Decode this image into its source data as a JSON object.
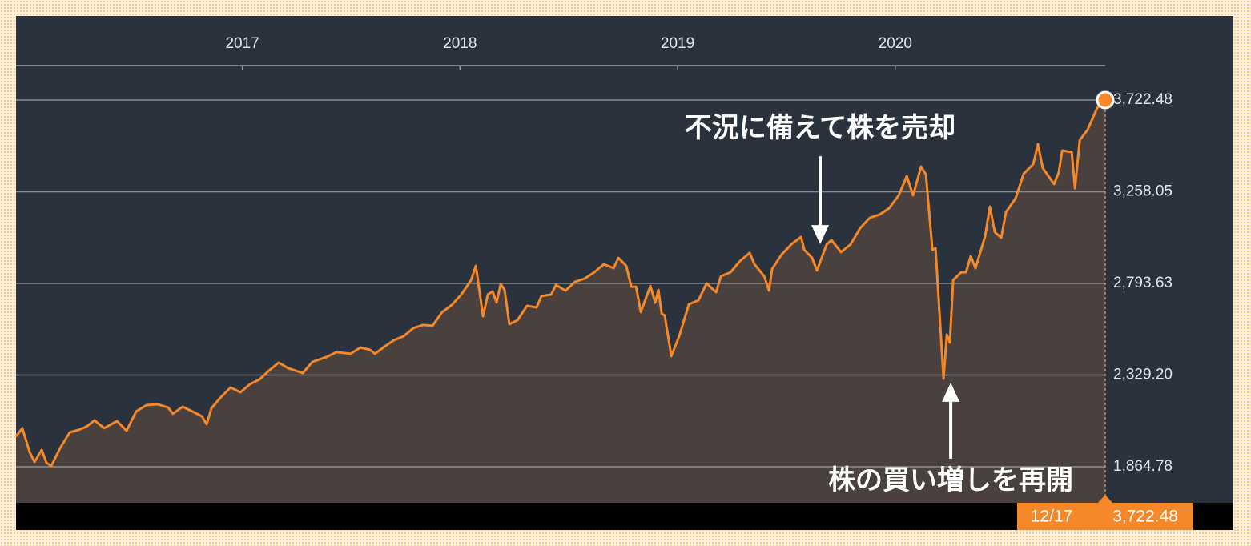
{
  "chart_data": {
    "type": "line",
    "x": [
      2015.96,
      2015.989,
      2016.023,
      2016.045,
      2016.078,
      2016.1,
      2016.122,
      2016.162,
      2016.207,
      2016.247,
      2016.284,
      2016.321,
      2016.365,
      2016.424,
      2016.468,
      2016.512,
      2016.56,
      2016.611,
      2016.659,
      2016.681,
      2016.726,
      2016.77,
      2016.814,
      2016.836,
      2016.858,
      2016.902,
      2016.946,
      2016.991,
      2017.035,
      2017.079,
      2017.123,
      2017.167,
      2017.211,
      2017.278,
      2017.322,
      2017.388,
      2017.432,
      2017.498,
      2017.543,
      2017.587,
      2017.609,
      2017.653,
      2017.697,
      2017.741,
      2017.786,
      2017.83,
      2017.874,
      2017.918,
      2017.962,
      2018.006,
      2018.051,
      2018.073,
      2018.106,
      2018.128,
      2018.15,
      2018.168,
      2018.187,
      2018.205,
      2018.227,
      2018.264,
      2018.308,
      2018.352,
      2018.374,
      2018.419,
      2018.441,
      2018.485,
      2018.529,
      2018.573,
      2018.617,
      2018.661,
      2018.706,
      2018.728,
      2018.764,
      2018.787,
      2018.809,
      2018.831,
      2018.875,
      2018.897,
      2018.912,
      2018.927,
      2018.941,
      2018.971,
      2019.007,
      2019.052,
      2019.096,
      2019.133,
      2019.177,
      2019.199,
      2019.243,
      2019.287,
      2019.331,
      2019.353,
      2019.398,
      2019.42,
      2019.434,
      2019.478,
      2019.523,
      2019.567,
      2019.582,
      2019.618,
      2019.64,
      2019.685,
      2019.707,
      2019.751,
      2019.795,
      2019.839,
      2019.883,
      2019.928,
      2019.972,
      2020.016,
      2020.053,
      2020.082,
      2020.119,
      2020.141,
      2020.171,
      2020.185,
      2020.2,
      2020.222,
      2020.237,
      2020.251,
      2020.266,
      2020.303,
      2020.325,
      2020.347,
      2020.369,
      2020.413,
      2020.435,
      2020.458,
      2020.487,
      2020.509,
      2020.553,
      2020.59,
      2020.634,
      2020.656,
      2020.678,
      2020.73,
      2020.752,
      2020.767,
      2020.811,
      2020.826,
      2020.848,
      2020.884,
      2020.928,
      2020.965
    ],
    "values": [
      2019,
      2060,
      1938,
      1889,
      1950,
      1885,
      1869,
      1958,
      2039,
      2051,
      2068,
      2100,
      2060,
      2096,
      2047,
      2145,
      2177,
      2181,
      2165,
      2133,
      2169,
      2145,
      2120,
      2080,
      2161,
      2218,
      2266,
      2242,
      2283,
      2307,
      2352,
      2392,
      2364,
      2339,
      2396,
      2421,
      2445,
      2437,
      2469,
      2457,
      2437,
      2473,
      2506,
      2526,
      2567,
      2583,
      2579,
      2648,
      2684,
      2737,
      2810,
      2883,
      2627,
      2737,
      2753,
      2696,
      2790,
      2761,
      2587,
      2607,
      2680,
      2672,
      2729,
      2737,
      2786,
      2757,
      2802,
      2818,
      2850,
      2891,
      2871,
      2923,
      2883,
      2777,
      2777,
      2648,
      2781,
      2696,
      2761,
      2640,
      2631,
      2425,
      2526,
      2688,
      2708,
      2794,
      2749,
      2830,
      2850,
      2907,
      2948,
      2891,
      2830,
      2757,
      2867,
      2940,
      2992,
      3029,
      2964,
      2923,
      2859,
      2992,
      3013,
      2952,
      2992,
      3074,
      3126,
      3142,
      3175,
      3240,
      3337,
      3240,
      3386,
      3345,
      2964,
      2972,
      2708,
      2311,
      2534,
      2493,
      2810,
      2850,
      2850,
      2932,
      2871,
      3033,
      3183,
      3053,
      3025,
      3155,
      3224,
      3349,
      3398,
      3499,
      3378,
      3297,
      3357,
      3467,
      3459,
      3276,
      3520,
      3572,
      3682,
      3722.48
    ],
    "value_labels": [
      null,
      null,
      null,
      null,
      null,
      null,
      null,
      null,
      null,
      null,
      null,
      null,
      null,
      null,
      null,
      null,
      null,
      null,
      null,
      null,
      null,
      null,
      null,
      null,
      null,
      null,
      null,
      null,
      null,
      null,
      null,
      null,
      null,
      null,
      null,
      null,
      null,
      null,
      null,
      null,
      null,
      null,
      null,
      null,
      null,
      null,
      null,
      null,
      null,
      null,
      null,
      null,
      null,
      null,
      null,
      null,
      null,
      null,
      null,
      null,
      null,
      null,
      null,
      null,
      null,
      null,
      null,
      null,
      null,
      null,
      null,
      null,
      null,
      null,
      null,
      null,
      null,
      null,
      null,
      null,
      null,
      null,
      null,
      null,
      null,
      null,
      null,
      null,
      null,
      null,
      null,
      null,
      null,
      null,
      null,
      null,
      null,
      null,
      null,
      null,
      null,
      null,
      null,
      null,
      null,
      null,
      null,
      null,
      null,
      null,
      null,
      null,
      null,
      null,
      null,
      null,
      null,
      null,
      null,
      null,
      null,
      null,
      null,
      null,
      null,
      null,
      null,
      null,
      null,
      null,
      null,
      null,
      null,
      null,
      null,
      null,
      null,
      null,
      null,
      null,
      null,
      null,
      null,
      "3,722.48"
    ],
    "last_date_label": "12/17",
    "color": "#f5892a",
    "xlim": [
      2015.96,
      2020.965
    ],
    "xticks": [
      2017,
      2018,
      2019,
      2020
    ],
    "ylim": [
      1682,
      3897
    ],
    "yticks": [
      {
        "value": 1864.78,
        "label": "1,864.78"
      },
      {
        "value": 2329.2,
        "label": "2,329.20"
      },
      {
        "value": 2793.63,
        "label": "2,793.63"
      },
      {
        "value": 3258.05,
        "label": "3,258.05"
      },
      {
        "value": 3722.48,
        "label": "3,722.48"
      }
    ],
    "grid": true,
    "annotations": [
      {
        "text": "不況に備えて株を売却",
        "x": 2019.655,
        "y": 2992,
        "placement": "above"
      },
      {
        "text": "株の買い増しを再開",
        "x": 2020.255,
        "y": 2291,
        "placement": "below"
      }
    ]
  }
}
